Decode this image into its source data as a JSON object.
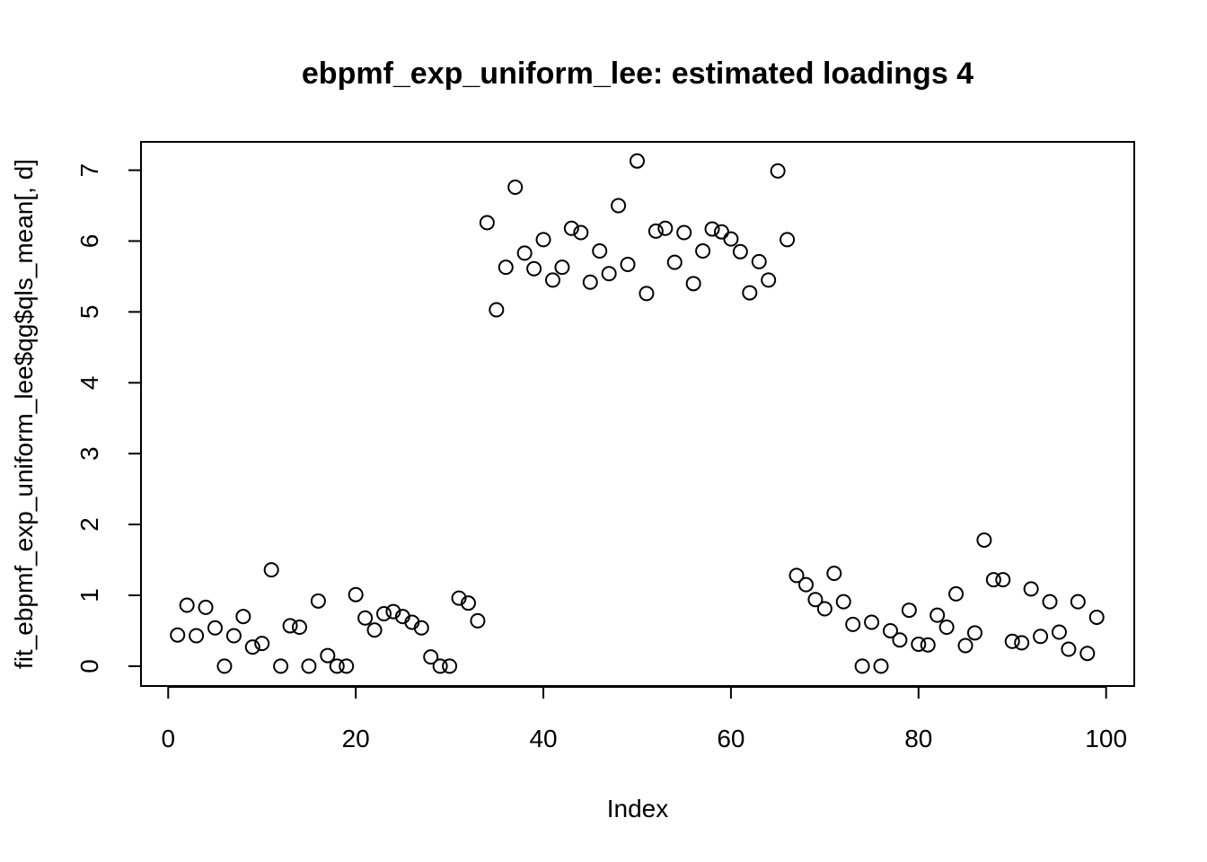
{
  "chart_data": {
    "type": "scatter",
    "title": "ebpmf_exp_uniform_lee: estimated loadings 4",
    "xlabel": "Index",
    "ylabel": "fit_ebpmf_exp_uniform_lee$qg$qls_mean[, d]",
    "xlim": [
      -2.9,
      103
    ],
    "ylim": [
      -0.28,
      7.4
    ],
    "xticks": [
      0,
      20,
      40,
      60,
      80,
      100
    ],
    "yticks": [
      0,
      1,
      2,
      3,
      4,
      5,
      6,
      7
    ],
    "grid": false,
    "legend": "none",
    "point_style": "open-circle",
    "colors": {
      "points": "#000000",
      "frame": "#000000",
      "background": "#ffffff"
    },
    "x": [
      1,
      2,
      3,
      4,
      5,
      6,
      7,
      8,
      9,
      10,
      11,
      12,
      13,
      14,
      15,
      16,
      17,
      18,
      19,
      20,
      21,
      22,
      23,
      24,
      25,
      26,
      27,
      28,
      29,
      30,
      31,
      32,
      33,
      34,
      35,
      36,
      37,
      38,
      39,
      40,
      41,
      42,
      43,
      44,
      45,
      46,
      47,
      48,
      49,
      50,
      51,
      52,
      53,
      54,
      55,
      56,
      57,
      58,
      59,
      60,
      61,
      62,
      63,
      64,
      65,
      66,
      67,
      68,
      69,
      70,
      71,
      72,
      73,
      74,
      75,
      76,
      77,
      78,
      79,
      80,
      81,
      82,
      83,
      84,
      85,
      86,
      87,
      88,
      89,
      90,
      91,
      92,
      93,
      94,
      95,
      96,
      97,
      98,
      99
    ],
    "y": [
      0.44,
      0.86,
      0.43,
      0.83,
      0.54,
      0.0,
      0.43,
      0.7,
      0.27,
      0.32,
      1.36,
      0.0,
      0.57,
      0.55,
      0.0,
      0.92,
      0.15,
      0.0,
      0.0,
      1.01,
      0.68,
      0.51,
      0.74,
      0.77,
      0.7,
      0.62,
      0.54,
      0.13,
      0.0,
      0.0,
      0.96,
      0.89,
      0.64,
      6.26,
      5.03,
      5.63,
      6.76,
      5.83,
      5.61,
      6.02,
      5.45,
      5.63,
      6.18,
      6.12,
      5.42,
      5.86,
      5.54,
      6.5,
      5.67,
      7.13,
      5.26,
      6.14,
      6.18,
      5.7,
      6.12,
      5.4,
      5.86,
      6.17,
      6.13,
      6.03,
      5.85,
      5.27,
      5.71,
      5.45,
      6.99,
      6.02,
      1.28,
      1.15,
      0.94,
      0.81,
      1.31,
      0.91,
      0.59,
      0.0,
      0.62,
      0.0,
      0.5,
      0.37,
      0.79,
      0.31,
      0.3,
      0.72,
      0.55,
      1.02,
      0.29,
      0.47,
      1.78,
      1.22,
      1.22,
      0.35,
      0.33,
      1.09,
      0.42,
      0.91,
      0.48,
      0.24,
      0.91,
      0.18,
      0.69
    ]
  }
}
